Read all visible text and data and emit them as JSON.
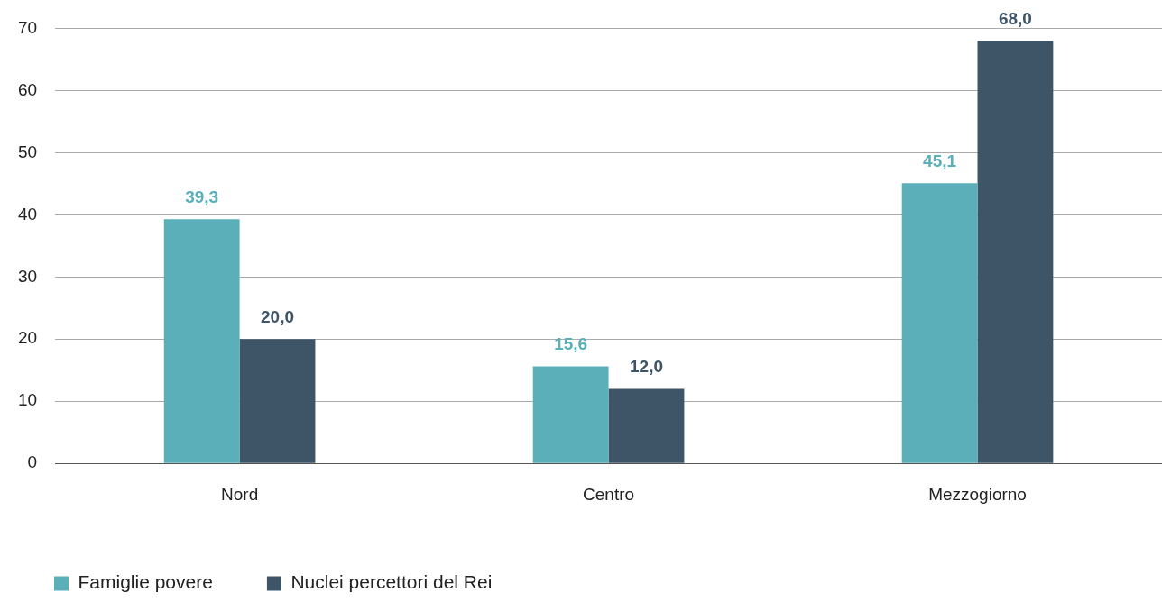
{
  "chart_data": {
    "type": "bar",
    "categories": [
      "Nord",
      "Centro",
      "Mezzogiorno"
    ],
    "series": [
      {
        "name": "Famiglie povere",
        "color": "#5aafb9",
        "values": [
          39.3,
          15.6,
          45.1
        ],
        "value_labels": [
          "39,3",
          "15,6",
          "45,1"
        ]
      },
      {
        "name": "Nuclei percettori del Rei",
        "color": "#3d5566",
        "values": [
          20.0,
          12.0,
          68.0
        ],
        "value_labels": [
          "20,0",
          "12,0",
          "68,0"
        ]
      }
    ],
    "ylim": [
      0,
      70
    ],
    "yticks": [
      0,
      10,
      20,
      30,
      40,
      50,
      60,
      70
    ],
    "grid": "y",
    "legend": "bottom left"
  }
}
